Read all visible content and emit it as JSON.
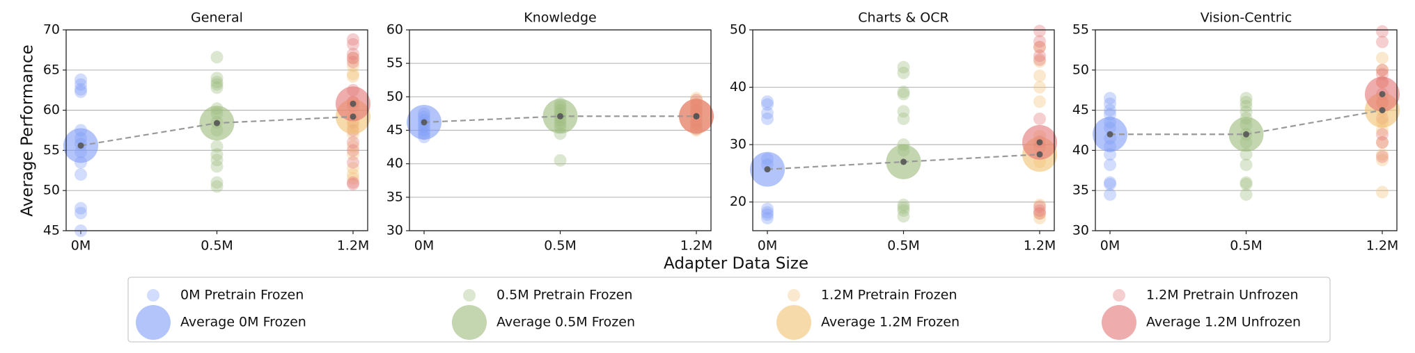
{
  "chart_data": {
    "type": "scatter",
    "x_label": "Adapter Data Size",
    "y_label": "Average Performance",
    "categories": [
      "0M",
      "0.5M",
      "1.2M"
    ],
    "grid": true,
    "series": [
      {
        "name": "0M Pretrain Frozen",
        "color": "#7f9cf5"
      },
      {
        "name": "0.5M Pretrain Frozen",
        "color": "#9bbb7c"
      },
      {
        "name": "1.2M Pretrain Frozen",
        "color": "#f2c172"
      },
      {
        "name": "1.2M Pretrain Unfrozen",
        "color": "#e37575"
      },
      {
        "name": "Average 0M Frozen",
        "color": "#7f9cf5"
      },
      {
        "name": "Average 0.5M Frozen",
        "color": "#9bbb7c"
      },
      {
        "name": "Average 1.2M Frozen",
        "color": "#f2c172"
      },
      {
        "name": "Average 1.2M Unfrozen",
        "color": "#e37575"
      }
    ],
    "trend_line": {
      "color": "#999999",
      "dashed": true,
      "series": [
        4,
        5,
        6
      ]
    },
    "panels": [
      {
        "title": "General",
        "ylim": [
          45,
          70
        ],
        "yticks": [
          45,
          50,
          55,
          60,
          65,
          70
        ],
        "series": [
          {
            "values": [
              [
                63.8,
                63.2,
                62.6,
                62.3,
                57.5,
                56.5,
                55.8,
                54.8,
                53.5,
                52.0,
                47.8,
                47.2,
                45.0
              ],
              [],
              []
            ]
          },
          {
            "values": [
              [],
              [
                66.6,
                64.0,
                63.5,
                63.2,
                62.8,
                60.2,
                59.6,
                58.5,
                57.5,
                55.5,
                54.5,
                53.8,
                53.0,
                51.0,
                50.5
              ],
              []
            ]
          },
          {
            "values": [
              [],
              [],
              [
                66.5,
                65.5,
                64.5,
                64.2,
                61.0,
                59.2,
                58.0,
                57.0,
                55.5,
                54.5,
                52.8,
                52.0,
                51.5
              ]
            ]
          },
          {
            "values": [
              [],
              [],
              [
                68.8,
                68.2,
                67.0,
                66.5,
                66.0,
                62.5,
                61.0,
                60.5,
                58.5,
                57.5,
                56.0,
                55.0,
                53.5,
                51.0,
                50.8
              ]
            ]
          },
          {
            "values": [
              55.6,
              null,
              null
            ]
          },
          {
            "values": [
              null,
              58.4,
              null
            ]
          },
          {
            "values": [
              null,
              null,
              59.2
            ]
          },
          {
            "values": [
              null,
              null,
              60.8
            ]
          }
        ]
      },
      {
        "title": "Knowledge",
        "ylim": [
          30,
          60
        ],
        "yticks": [
          30,
          35,
          40,
          45,
          50,
          55,
          60
        ],
        "series": [
          {
            "values": [
              [
                47.5,
                47.0,
                46.5,
                46.0,
                45.5,
                45.0,
                44.5,
                44.0
              ],
              [],
              []
            ]
          },
          {
            "values": [
              [],
              [
                49.0,
                48.5,
                48.0,
                47.5,
                47.0,
                46.5,
                46.0,
                45.5,
                44.5,
                40.5
              ],
              []
            ]
          },
          {
            "values": [
              [],
              [],
              [
                49.8,
                49.0,
                48.5,
                48.0,
                47.5,
                47.0,
                46.0,
                45.5,
                45.0
              ]
            ]
          },
          {
            "values": [
              [],
              [],
              [
                49.5,
                48.8,
                48.0,
                47.5,
                46.5,
                46.0,
                45.2
              ]
            ]
          },
          {
            "values": [
              46.2,
              null,
              null
            ]
          },
          {
            "values": [
              null,
              47.1,
              null
            ]
          },
          {
            "values": [
              null,
              null,
              47.1
            ]
          },
          {
            "values": [
              null,
              null,
              47.1
            ]
          }
        ]
      },
      {
        "title": "Charts & OCR",
        "ylim": [
          15,
          50
        ],
        "yticks": [
          20,
          30,
          40,
          50
        ],
        "series": [
          {
            "values": [
              [
                37.5,
                37.0,
                35.5,
                34.5,
                27.5,
                26.5,
                18.8,
                18.2,
                17.8,
                17.2
              ],
              [],
              []
            ]
          },
          {
            "values": [
              [],
              [
                43.5,
                42.5,
                39.2,
                38.8,
                35.8,
                34.5,
                30.0,
                29.0,
                19.5,
                19.0,
                18.5,
                17.5
              ],
              []
            ]
          },
          {
            "values": [
              [],
              [],
              [
                47.0,
                44.5,
                42.0,
                40.0,
                37.5,
                31.5,
                27.0,
                19.5,
                18.0,
                17.2
              ]
            ]
          },
          {
            "values": [
              [],
              [],
              [
                49.8,
                48.0,
                47.0,
                45.5,
                44.8,
                34.5,
                30.5,
                29.5,
                19.2,
                18.5,
                18.0
              ]
            ]
          },
          {
            "values": [
              25.7,
              null,
              null
            ]
          },
          {
            "values": [
              null,
              27.0,
              null
            ]
          },
          {
            "values": [
              null,
              null,
              28.3
            ]
          },
          {
            "values": [
              null,
              null,
              30.4
            ]
          }
        ]
      },
      {
        "title": "Vision-Centric",
        "ylim": [
          30,
          55
        ],
        "yticks": [
          30,
          35,
          40,
          45,
          50,
          55
        ],
        "series": [
          {
            "values": [
              [
                46.5,
                45.8,
                45.0,
                44.5,
                43.5,
                42.8,
                41.5,
                40.5,
                39.5,
                38.2,
                36.0,
                35.8,
                34.5
              ],
              [],
              []
            ]
          },
          {
            "values": [
              [],
              [
                46.5,
                46.0,
                45.5,
                44.8,
                44.0,
                43.2,
                42.0,
                41.0,
                39.5,
                38.2,
                36.0,
                35.8,
                34.5
              ],
              []
            ]
          },
          {
            "values": [
              [],
              [],
              [
                51.5,
                50.0,
                48.5,
                46.0,
                45.0,
                43.5,
                42.5,
                41.0,
                39.5,
                38.8,
                34.8
              ]
            ]
          },
          {
            "values": [
              [],
              [],
              [
                54.8,
                53.5,
                50.0,
                49.5,
                48.5,
                47.0,
                46.0,
                44.0,
                42.0,
                41.0,
                39.2
              ]
            ]
          },
          {
            "values": [
              42.0,
              null,
              null
            ]
          },
          {
            "values": [
              null,
              42.0,
              null
            ]
          },
          {
            "values": [
              null,
              null,
              45.0
            ]
          },
          {
            "values": [
              null,
              null,
              47.0
            ]
          }
        ]
      }
    ]
  }
}
